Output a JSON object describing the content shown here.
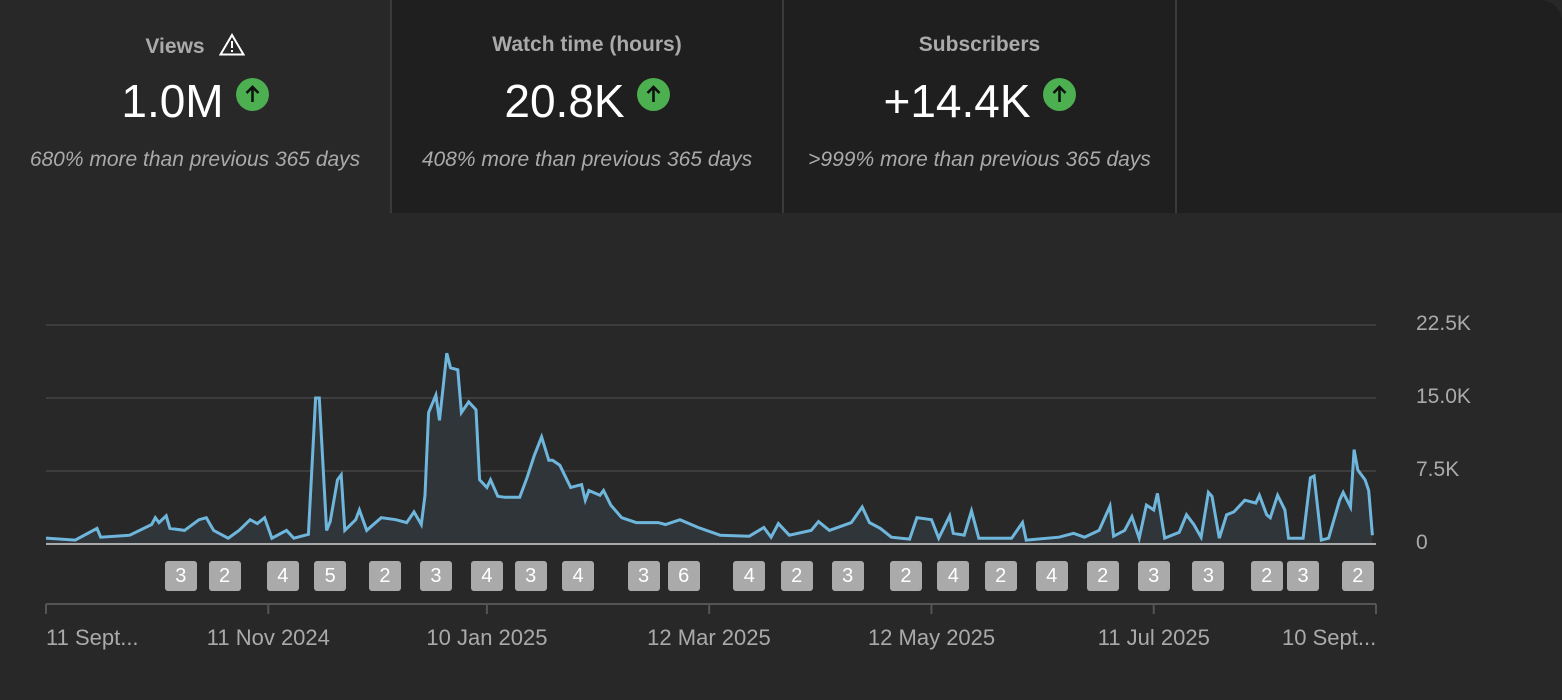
{
  "metrics": [
    {
      "title": "Views",
      "value": "1.0M",
      "trend_icon": "arrow-up-circle-icon",
      "comparison": "680% more than previous 365 days",
      "warning_icon": "warning-triangle-icon"
    },
    {
      "title": "Watch time (hours)",
      "value": "20.8K",
      "trend_icon": "arrow-up-circle-icon",
      "comparison": "408% more than previous 365 days"
    },
    {
      "title": "Subscribers",
      "value": "+14.4K",
      "trend_icon": "arrow-up-circle-icon",
      "comparison": ">999% more than previous 365 days"
    }
  ],
  "colors": {
    "line": "#6fb6dc",
    "fill": "#30353a",
    "trend_up": "#4caf50",
    "badge": "#aaaaaa"
  },
  "chart_data": {
    "type": "area",
    "title": "Views",
    "xlabel": "",
    "ylabel": "Views",
    "x_unit": "day index (0 = 11 Sept 2024, 365 = 10 Sept 2025)",
    "xlim": [
      0,
      365
    ],
    "ylim": [
      0,
      22500
    ],
    "y_ticks": [
      {
        "value": 0,
        "label": "0"
      },
      {
        "value": 7500,
        "label": "7.5K"
      },
      {
        "value": 15000,
        "label": "15.0K"
      },
      {
        "value": 22500,
        "label": "22.5K"
      }
    ],
    "x_ticks": [
      {
        "day": 0,
        "label": "11 Sept...",
        "align": "left"
      },
      {
        "day": 61,
        "label": "11 Nov 2024",
        "align": "center"
      },
      {
        "day": 121,
        "label": "10 Jan 2025",
        "align": "center"
      },
      {
        "day": 182,
        "label": "12 Mar 2025",
        "align": "center"
      },
      {
        "day": 243,
        "label": "12 May 2025",
        "align": "center"
      },
      {
        "day": 304,
        "label": "11 Jul 2025",
        "align": "center"
      },
      {
        "day": 365,
        "label": "10 Sept...",
        "align": "right"
      }
    ],
    "grid": true,
    "series": [
      {
        "name": "Views",
        "points": [
          [
            0,
            600
          ],
          [
            8,
            400
          ],
          [
            14,
            1600
          ],
          [
            15,
            700
          ],
          [
            23,
            900
          ],
          [
            29,
            2000
          ],
          [
            30,
            2700
          ],
          [
            31,
            2200
          ],
          [
            33,
            2900
          ],
          [
            34,
            1600
          ],
          [
            38,
            1400
          ],
          [
            42,
            2500
          ],
          [
            44,
            2700
          ],
          [
            46,
            1400
          ],
          [
            50,
            600
          ],
          [
            53,
            1400
          ],
          [
            56,
            2500
          ],
          [
            58,
            2100
          ],
          [
            60,
            2700
          ],
          [
            62,
            600
          ],
          [
            66,
            1400
          ],
          [
            68,
            600
          ],
          [
            72,
            1000
          ],
          [
            74,
            15000
          ],
          [
            75,
            15000
          ],
          [
            77,
            1400
          ],
          [
            78,
            2300
          ],
          [
            80,
            6600
          ],
          [
            81,
            7100
          ],
          [
            82,
            1400
          ],
          [
            85,
            2500
          ],
          [
            86,
            3500
          ],
          [
            88,
            1400
          ],
          [
            92,
            2700
          ],
          [
            96,
            2500
          ],
          [
            99,
            2200
          ],
          [
            101,
            3300
          ],
          [
            103,
            2000
          ],
          [
            104,
            5000
          ],
          [
            105,
            13500
          ],
          [
            107,
            15300
          ],
          [
            108,
            12700
          ],
          [
            110,
            19600
          ],
          [
            111,
            18100
          ],
          [
            113,
            17900
          ],
          [
            114,
            13500
          ],
          [
            116,
            14600
          ],
          [
            118,
            13800
          ],
          [
            119,
            6600
          ],
          [
            121,
            5800
          ],
          [
            122,
            6600
          ],
          [
            124,
            4900
          ],
          [
            126,
            4800
          ],
          [
            130,
            4800
          ],
          [
            132,
            6800
          ],
          [
            134,
            9100
          ],
          [
            136,
            11000
          ],
          [
            138,
            8600
          ],
          [
            139,
            8600
          ],
          [
            141,
            8100
          ],
          [
            144,
            5800
          ],
          [
            147,
            6100
          ],
          [
            148,
            4500
          ],
          [
            149,
            5500
          ],
          [
            152,
            5000
          ],
          [
            153,
            5500
          ],
          [
            155,
            4000
          ],
          [
            158,
            2700
          ],
          [
            162,
            2200
          ],
          [
            168,
            2200
          ],
          [
            170,
            2000
          ],
          [
            174,
            2500
          ],
          [
            179,
            1700
          ],
          [
            185,
            900
          ],
          [
            193,
            800
          ],
          [
            197,
            1700
          ],
          [
            199,
            700
          ],
          [
            201,
            2100
          ],
          [
            204,
            900
          ],
          [
            210,
            1400
          ],
          [
            212,
            2300
          ],
          [
            215,
            1400
          ],
          [
            221,
            2200
          ],
          [
            224,
            3800
          ],
          [
            226,
            2200
          ],
          [
            229,
            1600
          ],
          [
            232,
            700
          ],
          [
            237,
            500
          ],
          [
            239,
            2700
          ],
          [
            243,
            2500
          ],
          [
            245,
            600
          ],
          [
            248,
            2900
          ],
          [
            249,
            1100
          ],
          [
            252,
            900
          ],
          [
            254,
            3400
          ],
          [
            256,
            600
          ],
          [
            265,
            600
          ],
          [
            268,
            2200
          ],
          [
            269,
            400
          ],
          [
            278,
            700
          ],
          [
            282,
            1100
          ],
          [
            285,
            700
          ],
          [
            289,
            1400
          ],
          [
            292,
            3900
          ],
          [
            293,
            800
          ],
          [
            296,
            1400
          ],
          [
            298,
            2800
          ],
          [
            300,
            600
          ],
          [
            302,
            4000
          ],
          [
            304,
            3500
          ],
          [
            305,
            5200
          ],
          [
            307,
            600
          ],
          [
            311,
            1200
          ],
          [
            313,
            3000
          ],
          [
            315,
            2000
          ],
          [
            317,
            700
          ],
          [
            319,
            5300
          ],
          [
            320,
            4900
          ],
          [
            322,
            600
          ],
          [
            324,
            3000
          ],
          [
            326,
            3300
          ],
          [
            329,
            4500
          ],
          [
            332,
            4200
          ],
          [
            333,
            5000
          ],
          [
            335,
            3000
          ],
          [
            336,
            2700
          ],
          [
            338,
            5000
          ],
          [
            340,
            3500
          ],
          [
            341,
            600
          ],
          [
            345,
            600
          ],
          [
            347,
            6800
          ],
          [
            348,
            7000
          ],
          [
            350,
            400
          ],
          [
            352,
            600
          ],
          [
            355,
            4500
          ],
          [
            356,
            5300
          ],
          [
            358,
            3800
          ],
          [
            359,
            9700
          ],
          [
            360,
            7600
          ],
          [
            362,
            6600
          ],
          [
            363,
            5500
          ],
          [
            364,
            900
          ]
        ]
      }
    ],
    "annotations": [
      {
        "day": 37,
        "label": "3"
      },
      {
        "day": 49,
        "label": "2"
      },
      {
        "day": 65,
        "label": "4"
      },
      {
        "day": 78,
        "label": "5"
      },
      {
        "day": 93,
        "label": "2"
      },
      {
        "day": 107,
        "label": "3"
      },
      {
        "day": 121,
        "label": "4"
      },
      {
        "day": 133,
        "label": "3"
      },
      {
        "day": 146,
        "label": "4"
      },
      {
        "day": 164,
        "label": "3"
      },
      {
        "day": 175,
        "label": "6"
      },
      {
        "day": 193,
        "label": "4"
      },
      {
        "day": 206,
        "label": "2"
      },
      {
        "day": 220,
        "label": "3"
      },
      {
        "day": 236,
        "label": "2"
      },
      {
        "day": 249,
        "label": "4"
      },
      {
        "day": 262,
        "label": "2"
      },
      {
        "day": 276,
        "label": "4"
      },
      {
        "day": 290,
        "label": "2"
      },
      {
        "day": 304,
        "label": "3"
      },
      {
        "day": 319,
        "label": "3"
      },
      {
        "day": 335,
        "label": "2"
      },
      {
        "day": 345,
        "label": "3"
      },
      {
        "day": 360,
        "label": "2"
      }
    ]
  }
}
